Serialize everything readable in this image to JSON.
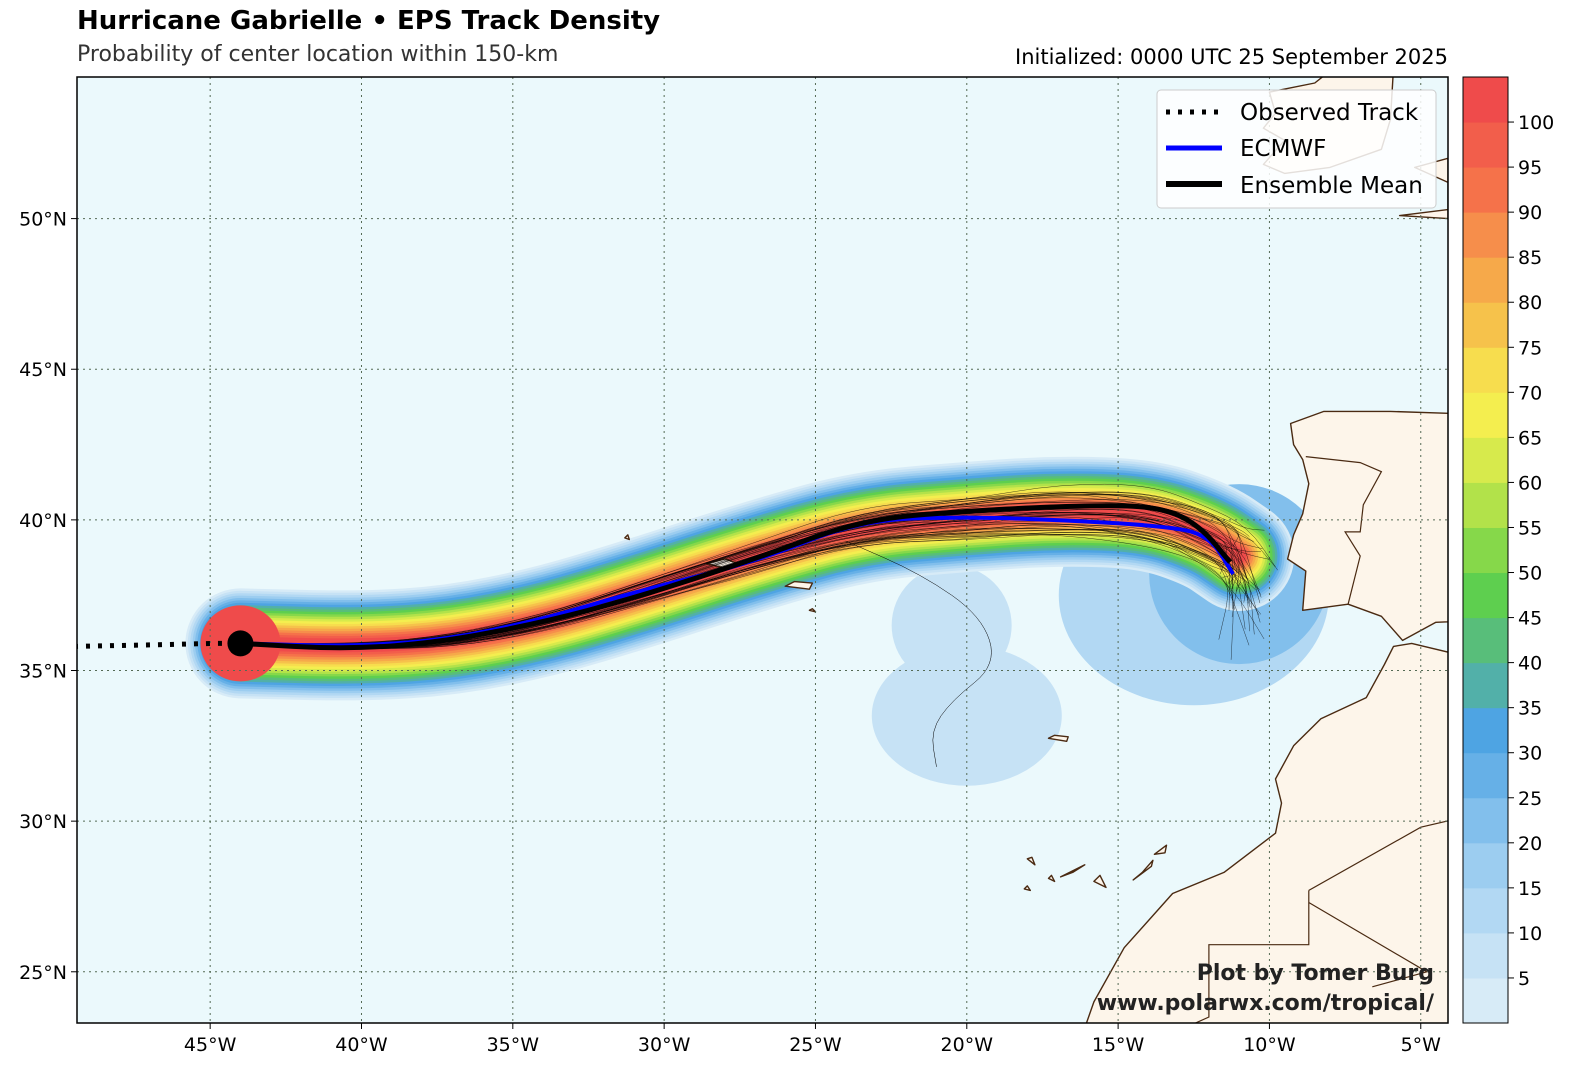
{
  "header": {
    "title": "Hurricane Gabrielle • EPS Track Density",
    "subtitle": "Probability of center location within 150-km",
    "initialized": "Initialized: 0000 UTC 25 September 2025"
  },
  "map": {
    "lon_range": [
      -49.4,
      -4.1
    ],
    "lat_range": [
      23.3,
      54.7
    ],
    "lon_ticks": [
      -45,
      -40,
      -35,
      -30,
      -25,
      -20,
      -15,
      -10,
      -5
    ],
    "lon_tick_labels": [
      "45°W",
      "40°W",
      "35°W",
      "30°W",
      "25°W",
      "20°W",
      "15°W",
      "10°W",
      "5°W"
    ],
    "lat_ticks": [
      50,
      45,
      40,
      35,
      30,
      25
    ],
    "lat_tick_labels": [
      "50°N",
      "45°N",
      "40°N",
      "35°N",
      "30°N",
      "25°N"
    ],
    "ocean_color": "#ebf9fc",
    "land_color": "#fdf5ea",
    "coast_color": "#4a2a12",
    "gridlines": "dotted"
  },
  "legend": {
    "items": [
      {
        "label": "Observed Track",
        "style": "dotted",
        "color": "#000000"
      },
      {
        "label": "ECMWF",
        "style": "solid",
        "color": "#0000ff"
      },
      {
        "label": "Ensemble Mean",
        "style": "solid",
        "color": "#000000"
      }
    ],
    "placement": "top-right"
  },
  "colorbar": {
    "levels": [
      5,
      10,
      15,
      20,
      25,
      30,
      35,
      40,
      45,
      50,
      55,
      60,
      65,
      70,
      75,
      80,
      85,
      90,
      95,
      100
    ],
    "labels": [
      "5",
      "10",
      "15",
      "20",
      "25",
      "30",
      "35",
      "40",
      "45",
      "50",
      "55",
      "60",
      "65",
      "70",
      "75",
      "80",
      "85",
      "90",
      "95",
      "100"
    ],
    "colors": [
      "#d7ebf7",
      "#c6e2f5",
      "#b2d8f3",
      "#9ccdf0",
      "#82bfec",
      "#66b0e7",
      "#4ea4e3",
      "#52b0a9",
      "#58be7a",
      "#5ecf4f",
      "#86d84a",
      "#b2e24a",
      "#d7ea4c",
      "#f4ee4f",
      "#f7dd4e",
      "#f6c24b",
      "#f6a94a",
      "#f68e4b",
      "#f5724a",
      "#f25e4b",
      "#ef4b4b"
    ]
  },
  "chart_data": {
    "type": "map",
    "observed_track": [
      [
        -49.5,
        35.8
      ],
      [
        -47,
        35.85
      ],
      [
        -44.8,
        35.9
      ],
      [
        -44.0,
        35.9
      ]
    ],
    "current_position": [
      -44.0,
      35.9
    ],
    "ecmwf_track": [
      [
        -44.0,
        35.9
      ],
      [
        -40.5,
        35.8
      ],
      [
        -37.3,
        36.0
      ],
      [
        -34.0,
        36.7
      ],
      [
        -31.0,
        37.6
      ],
      [
        -27.0,
        38.6
      ],
      [
        -23.5,
        40.0
      ],
      [
        -20.0,
        40.1
      ],
      [
        -17.0,
        40.0
      ],
      [
        -13.5,
        39.8
      ],
      [
        -12.0,
        39.5
      ],
      [
        -11.2,
        38.2
      ]
    ],
    "ensemble_mean_track": [
      [
        -44.0,
        35.9
      ],
      [
        -40.5,
        35.7
      ],
      [
        -37.3,
        35.95
      ],
      [
        -34.0,
        36.6
      ],
      [
        -31.0,
        37.4
      ],
      [
        -27.0,
        38.7
      ],
      [
        -23.5,
        40.0
      ],
      [
        -20.0,
        40.3
      ],
      [
        -15.5,
        40.5
      ],
      [
        -13.5,
        40.4
      ],
      [
        -12.3,
        39.8
      ],
      [
        -11.3,
        38.6
      ]
    ],
    "density_ridge": [
      [
        -44.0,
        35.9
      ],
      [
        -40.0,
        35.8
      ],
      [
        -37.0,
        36.0
      ],
      [
        -34.0,
        36.6
      ],
      [
        -31.0,
        37.5
      ],
      [
        -27.0,
        38.8
      ],
      [
        -23.5,
        39.8
      ],
      [
        -20.0,
        40.1
      ],
      [
        -17.0,
        40.3
      ],
      [
        -14.0,
        40.2
      ],
      [
        -12.0,
        39.5
      ],
      [
        -11.0,
        38.8
      ]
    ],
    "spread_blob": {
      "center": [
        -20.0,
        33.5
      ],
      "note": ""
    }
  },
  "credit": {
    "line1": "Plot by Tomer Burg",
    "line2": "www.polarwx.com/tropical/"
  }
}
